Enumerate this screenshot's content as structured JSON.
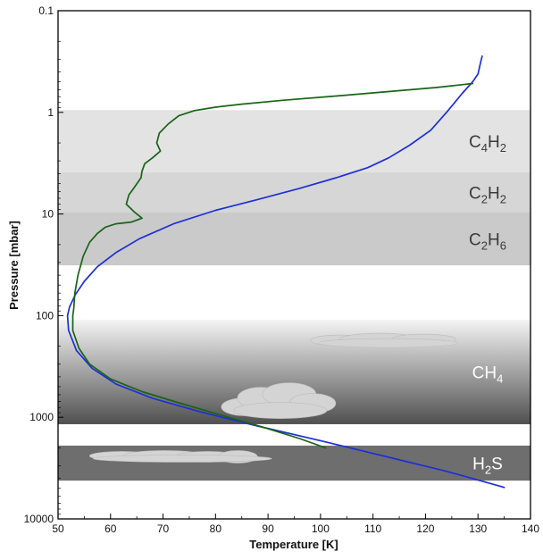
{
  "chart_data": {
    "type": "line",
    "xlabel": "Temperature [K]",
    "ylabel": "Pressure [mbar]",
    "xlim": [
      50,
      140
    ],
    "ylim": [
      0.1,
      10000
    ],
    "yscale": "log",
    "y_inverted": true,
    "grid": false,
    "x_ticks": [
      50,
      60,
      70,
      80,
      90,
      100,
      110,
      120,
      130,
      140
    ],
    "y_ticks": [
      {
        "value": 0.1,
        "label": "0.1"
      },
      {
        "value": 1,
        "label": "1"
      },
      {
        "value": 10,
        "label": "10"
      },
      {
        "value": 100,
        "label": "100"
      },
      {
        "value": 1000,
        "label": "1000"
      },
      {
        "value": 10000,
        "label": "10000"
      }
    ],
    "bands": [
      {
        "name": "C4H2",
        "base": "C",
        "sub1": "4",
        "mid": "H",
        "sub2": "2",
        "p_top": 0.95,
        "p_bottom": 3.9,
        "color": "#e3e3e3",
        "label_style": "dark"
      },
      {
        "name": "C2H2",
        "base": "C",
        "sub1": "2",
        "mid": "H",
        "sub2": "2",
        "p_top": 3.9,
        "p_bottom": 9.6,
        "color": "#d6d6d6",
        "label_style": "dark"
      },
      {
        "name": "C2H6",
        "base": "C",
        "sub1": "2",
        "mid": "H",
        "sub2": "6",
        "p_top": 9.6,
        "p_bottom": 32,
        "color": "#cacaca",
        "label_style": "dark"
      },
      {
        "name": "CH4",
        "base": "CH",
        "sub1": "4",
        "mid": "",
        "sub2": "",
        "p_top": 110,
        "p_bottom": 1170,
        "color_top": "#f4f4f4",
        "color_bottom": "#505050",
        "label_style": "light"
      },
      {
        "name": "H2S",
        "base": "H",
        "sub1": "2",
        "mid": "S",
        "sub2": "",
        "p_top": 1900,
        "p_bottom": 4200,
        "color": "#6e6e6e",
        "label_style": "light"
      }
    ],
    "series": [
      {
        "color": "#1e2fd6",
        "points": [
          [
            130.8,
            0.28
          ],
          [
            130.5,
            0.32
          ],
          [
            130.0,
            0.42
          ],
          [
            129.0,
            0.5
          ],
          [
            127.0,
            0.65
          ],
          [
            124.0,
            1.0
          ],
          [
            121.0,
            1.5
          ],
          [
            117.0,
            2.1
          ],
          [
            113.0,
            2.8
          ],
          [
            109.0,
            3.5
          ],
          [
            103.0,
            4.4
          ],
          [
            96.0,
            5.6
          ],
          [
            88.0,
            7.2
          ],
          [
            80.0,
            9.2
          ],
          [
            72.0,
            12.5
          ],
          [
            65.5,
            17.5
          ],
          [
            61.0,
            24
          ],
          [
            57.5,
            33
          ],
          [
            55.0,
            46
          ],
          [
            53.3,
            62
          ],
          [
            52.2,
            82
          ],
          [
            51.8,
            100
          ],
          [
            52.0,
            140
          ],
          [
            53.5,
            220
          ],
          [
            56.5,
            330
          ],
          [
            61.0,
            470
          ],
          [
            68.0,
            650
          ],
          [
            77.0,
            880
          ],
          [
            88.0,
            1220
          ],
          [
            100.0,
            1700
          ],
          [
            112.0,
            2400
          ],
          [
            124.0,
            3400
          ],
          [
            135.0,
            4900
          ]
        ]
      },
      {
        "color": "#186418",
        "points": [
          [
            129.0,
            0.52
          ],
          [
            122.0,
            0.57
          ],
          [
            112.0,
            0.63
          ],
          [
            103.0,
            0.69
          ],
          [
            93.0,
            0.76
          ],
          [
            85.0,
            0.83
          ],
          [
            80.0,
            0.89
          ],
          [
            76.0,
            0.96
          ],
          [
            73.0,
            1.08
          ],
          [
            71.0,
            1.3
          ],
          [
            69.3,
            1.6
          ],
          [
            68.8,
            2.0
          ],
          [
            69.5,
            2.4
          ],
          [
            68.0,
            2.8
          ],
          [
            66.5,
            3.2
          ],
          [
            66.0,
            3.8
          ],
          [
            65.8,
            4.4
          ],
          [
            64.5,
            5.5
          ],
          [
            63.5,
            6.5
          ],
          [
            63.0,
            8.0
          ],
          [
            64.5,
            9.5
          ],
          [
            66.0,
            11.0
          ],
          [
            64.0,
            12.0
          ],
          [
            61.0,
            12.5
          ],
          [
            59.0,
            13.5
          ],
          [
            57.5,
            15.5
          ],
          [
            56.0,
            19
          ],
          [
            54.8,
            26
          ],
          [
            53.8,
            40
          ],
          [
            53.2,
            60
          ],
          [
            53.0,
            85
          ],
          [
            52.8,
            100
          ],
          [
            52.8,
            140
          ],
          [
            54.0,
            210
          ],
          [
            56.0,
            300
          ],
          [
            60.0,
            420
          ],
          [
            66.0,
            560
          ],
          [
            73.0,
            720
          ],
          [
            81.0,
            950
          ],
          [
            89.0,
            1250
          ],
          [
            96.0,
            1620
          ],
          [
            101.0,
            2000
          ]
        ]
      }
    ],
    "clouds": [
      {
        "band": "CH4",
        "shape": "flat",
        "t_center": 112,
        "p_center": 175
      },
      {
        "band": "CH4",
        "shape": "puffy",
        "t_center": 92,
        "p_center": 700
      },
      {
        "band": "H2S",
        "shape": "flat-long",
        "t_center": 72,
        "p_center": 2400
      }
    ]
  }
}
